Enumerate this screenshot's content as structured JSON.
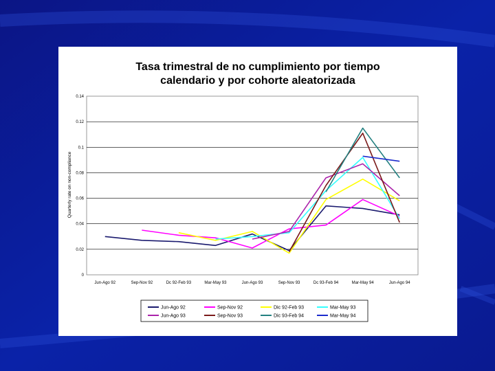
{
  "colors": {
    "background": "#0a1a8a",
    "panel": "#ffffff",
    "plot_area": "#ffffff",
    "grid": "#000000"
  },
  "chart_data": {
    "type": "line",
    "title_lines": [
      "Tasa trimestral de no cumplimiento por tiempo",
      "calendario y por cohorte aleatorizada"
    ],
    "xlabel": "",
    "ylabel": "Quarterly rate on non-compliance",
    "ylim": [
      0,
      0.14
    ],
    "yticks": [
      0,
      0.02,
      0.04,
      0.06,
      0.08,
      0.1,
      0.12,
      0.14
    ],
    "ytick_labels": [
      "0",
      "0.02",
      "0.04",
      "0.06",
      "0.08",
      "0.1",
      "0.12",
      "0.14"
    ],
    "grid": "horizontal",
    "legend_position": "bottom",
    "categories": [
      "Jun-Ago 92",
      "Sep-Nov 92",
      "Dc 92-Feb 93",
      "Mar-May 93",
      "Jun-Ago 93",
      "Sep-Nov 93",
      "Dc 93-Feb 94",
      "Mar-May 94",
      "Jun-Ago 94"
    ],
    "series": [
      {
        "name": "Jun-Ago 92",
        "color": "#1a1a6e",
        "values": [
          0.03,
          0.027,
          0.026,
          0.023,
          0.032,
          0.019,
          0.054,
          0.052,
          0.047
        ]
      },
      {
        "name": "Sep-Nov 92",
        "color": "#ff00ff",
        "values": [
          null,
          0.035,
          0.031,
          0.029,
          0.021,
          0.036,
          0.039,
          0.059,
          0.046
        ]
      },
      {
        "name": "Dic 92-Feb 93",
        "color": "#ffff00",
        "values": [
          null,
          null,
          0.033,
          0.027,
          0.034,
          0.017,
          0.059,
          0.075,
          0.058
        ]
      },
      {
        "name": "Mar-May 93",
        "color": "#33ffff",
        "values": [
          null,
          null,
          null,
          0.028,
          0.03,
          0.033,
          0.066,
          0.092,
          0.044
        ]
      },
      {
        "name": "Jun-Ago 93",
        "color": "#aa22aa",
        "values": [
          null,
          null,
          null,
          null,
          0.028,
          0.034,
          0.076,
          0.087,
          0.062
        ]
      },
      {
        "name": "Sep-Nov 93",
        "color": "#7a1a1a",
        "values": [
          null,
          null,
          null,
          null,
          null,
          0.018,
          0.07,
          0.111,
          0.041
        ]
      },
      {
        "name": "Dic 93-Feb 94",
        "color": "#228080",
        "values": [
          null,
          null,
          null,
          null,
          null,
          null,
          0.065,
          0.115,
          0.076
        ]
      },
      {
        "name": "Mar-May 94",
        "color": "#1a2acc",
        "values": [
          null,
          null,
          null,
          null,
          null,
          null,
          null,
          0.093,
          0.089
        ]
      }
    ]
  }
}
